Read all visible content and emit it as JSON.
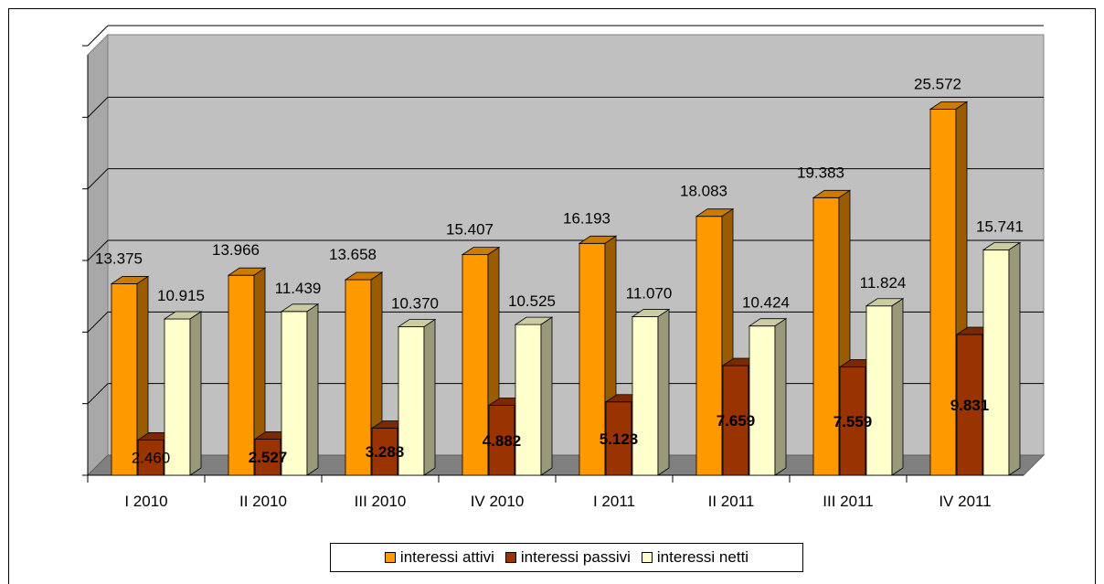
{
  "chart_data": {
    "type": "bar",
    "categories": [
      "I 2010",
      "II 2010",
      "III 2010",
      "IV 2010",
      "I 2011",
      "II 2011",
      "III 2011",
      "IV 2011"
    ],
    "series": [
      {
        "name": "interessi attivi",
        "color": "#FF9900",
        "values": [
          13375,
          13966,
          13658,
          15407,
          16193,
          18083,
          19383,
          25572
        ],
        "labels": [
          "13.375",
          "13.966",
          "13.658",
          "15.407",
          "16.193",
          "18.083",
          "19.383",
          "25.572"
        ]
      },
      {
        "name": "interessi passivi",
        "color": "#993300",
        "values": [
          2460,
          2527,
          3288,
          4882,
          5123,
          7659,
          7559,
          9831
        ],
        "labels": [
          "2.460",
          "2.527",
          "3.288",
          "4.882",
          "5.123",
          "7.659",
          "7.559",
          "9.831"
        ]
      },
      {
        "name": "interessi netti",
        "color": "#FFFFCC",
        "values": [
          10915,
          11439,
          10370,
          10525,
          11070,
          10424,
          11824,
          15741
        ],
        "labels": [
          "10.915",
          "11.439",
          "10.370",
          "10.525",
          "11.070",
          "10.424",
          "11.824",
          "15.741"
        ]
      }
    ],
    "ylim": [
      0,
      30000
    ],
    "ytick_step": 5000,
    "grid": true,
    "legend_position": "bottom",
    "plot_background": "#C0C0C0",
    "floor_color": "#808080"
  }
}
